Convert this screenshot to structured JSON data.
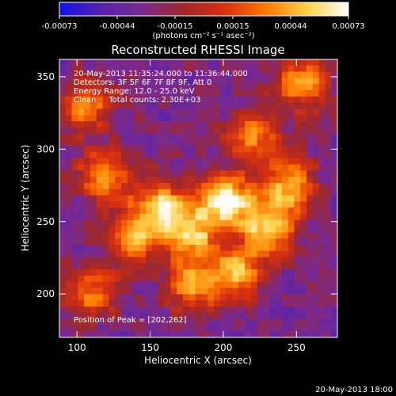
{
  "chart_data": {
    "type": "heatmap",
    "title": "Reconstructed RHESSI Image",
    "xlabel": "Heliocentric X (arcsec)",
    "ylabel": "Heliocentric Y (arcsec)",
    "xlim": [
      88,
      278
    ],
    "ylim": [
      170,
      362
    ],
    "xticks": [
      100,
      150,
      200,
      250
    ],
    "yticks": [
      200,
      250,
      300,
      350
    ],
    "colorbar": {
      "label": "(photons cm⁻² s⁻¹ asec⁻²)",
      "range": [
        -0.00073,
        0.00073
      ],
      "ticks": [
        "-0.00073",
        "-0.00044",
        "-0.00015",
        "0.00015",
        "0.00044",
        "0.00073"
      ],
      "colors": [
        "#1212e6",
        "#5522aa",
        "#7a2a90",
        "#a02828",
        "#d83010",
        "#ff7800",
        "#ffd24a",
        "#ffffff"
      ]
    },
    "annotations": [
      "20-May-2013 11:35:24.000 to 11:36:44.000",
      "Detectors: 3F 5F 6F 7F 8F 9F, Att 0",
      "Energy Range: 12.0 - 25.0 keV",
      "Clean     Total counts: 2.30E+03"
    ],
    "peak_label": "Position of Peak = [202,262]",
    "peak": [
      202,
      262
    ],
    "bright_sources": [
      {
        "x": 202,
        "y": 263,
        "intensity": 0.00073
      },
      {
        "x": 232,
        "y": 245,
        "intensity": 0.00055
      },
      {
        "x": 245,
        "y": 275,
        "intensity": 0.00048
      },
      {
        "x": 160,
        "y": 260,
        "intensity": 0.0005
      },
      {
        "x": 120,
        "y": 282,
        "intensity": 0.00044
      },
      {
        "x": 140,
        "y": 240,
        "intensity": 0.00046
      },
      {
        "x": 178,
        "y": 240,
        "intensity": 0.00045
      },
      {
        "x": 105,
        "y": 330,
        "intensity": 0.0004
      },
      {
        "x": 220,
        "y": 310,
        "intensity": 0.00035
      },
      {
        "x": 210,
        "y": 215,
        "intensity": 0.0004
      },
      {
        "x": 180,
        "y": 205,
        "intensity": 0.00038
      },
      {
        "x": 255,
        "y": 345,
        "intensity": 0.00042
      },
      {
        "x": 110,
        "y": 200,
        "intensity": 0.0003
      }
    ]
  },
  "footer_timestamp": "20-May-2013 18:00"
}
